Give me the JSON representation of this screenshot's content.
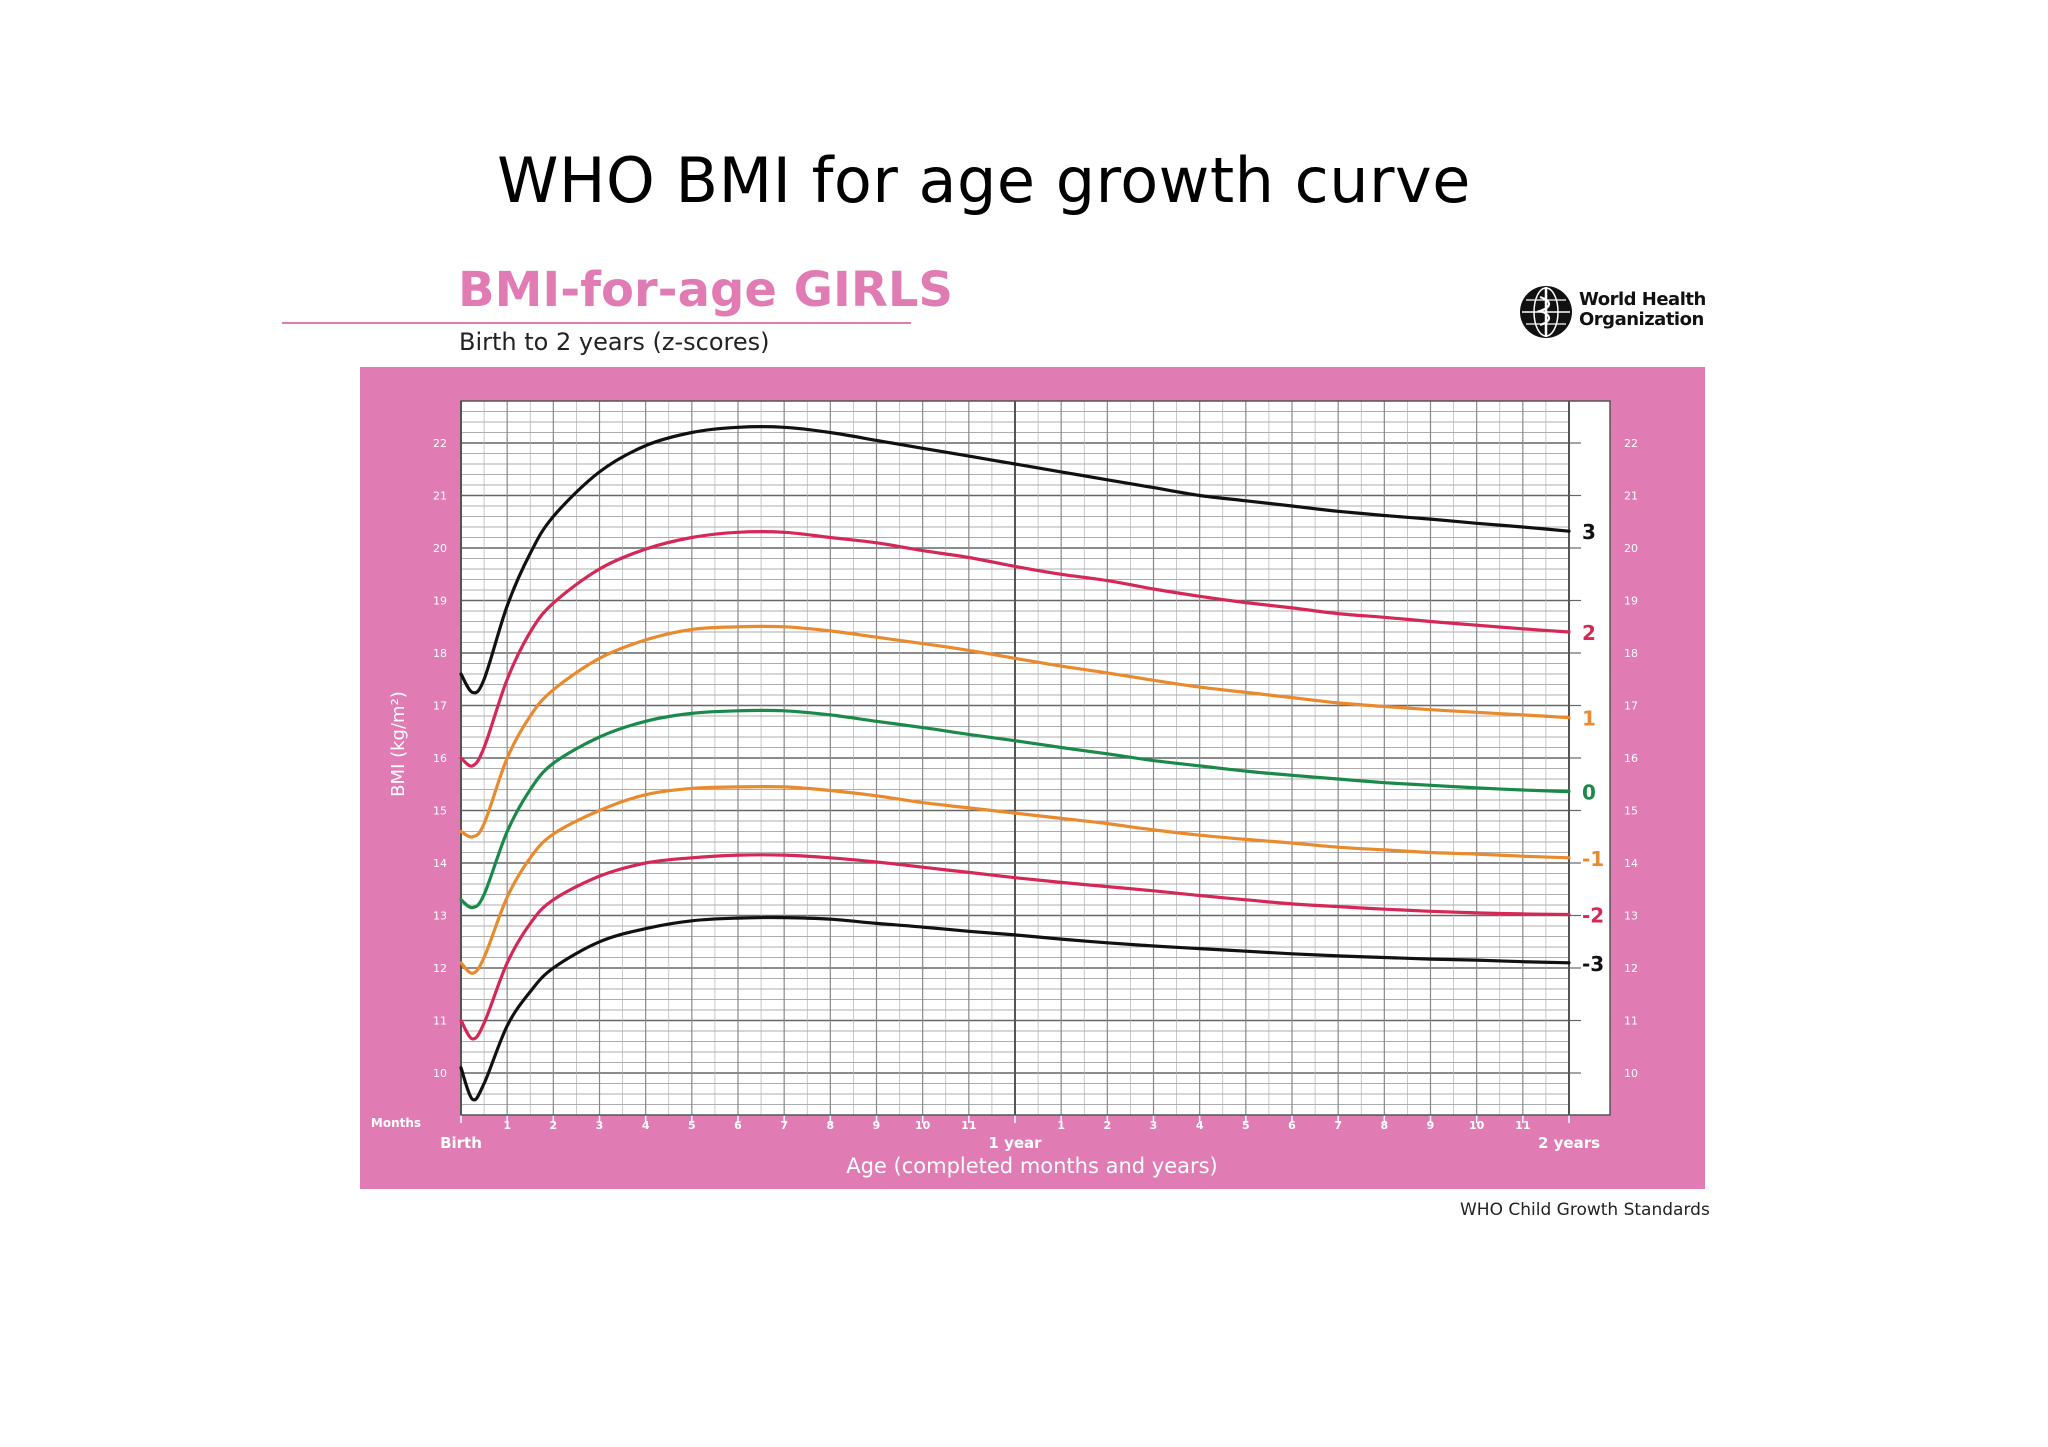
{
  "slide": {
    "title": "WHO BMI for age growth curve"
  },
  "header": {
    "title": "BMI-for-age GIRLS",
    "subtitle": "Birth to 2 years (z-scores)",
    "logo_text_line1": "World Health",
    "logo_text_line2": "Organization"
  },
  "footer": {
    "note": "WHO Child Growth Standards"
  },
  "colors": {
    "panel": "#e07cb3",
    "grid": "#909090",
    "black": "#111111",
    "red": "#d42857",
    "orange": "#e88a2e",
    "green": "#1a8a4a"
  },
  "chart_data": {
    "type": "line",
    "title": "BMI-for-age GIRLS",
    "subtitle": "Birth to 2 years (z-scores)",
    "xlabel": "Age (completed months and years)",
    "ylabel": "BMI (kg/m²)",
    "x_unit_label": "Months",
    "xlim": [
      0,
      24
    ],
    "ylim": [
      9.2,
      22.8
    ],
    "y_ticks": [
      10,
      11,
      12,
      13,
      14,
      15,
      16,
      17,
      18,
      19,
      20,
      21,
      22
    ],
    "x_ticks": [
      {
        "x": 0,
        "label": "Birth",
        "major": true
      },
      {
        "x": 1,
        "label": "1"
      },
      {
        "x": 2,
        "label": "2"
      },
      {
        "x": 3,
        "label": "3"
      },
      {
        "x": 4,
        "label": "4"
      },
      {
        "x": 5,
        "label": "5"
      },
      {
        "x": 6,
        "label": "6"
      },
      {
        "x": 7,
        "label": "7"
      },
      {
        "x": 8,
        "label": "8"
      },
      {
        "x": 9,
        "label": "9"
      },
      {
        "x": 10,
        "label": "10"
      },
      {
        "x": 11,
        "label": "11"
      },
      {
        "x": 12,
        "label": "1 year",
        "major": true
      },
      {
        "x": 13,
        "label": "1"
      },
      {
        "x": 14,
        "label": "2"
      },
      {
        "x": 15,
        "label": "3"
      },
      {
        "x": 16,
        "label": "4"
      },
      {
        "x": 17,
        "label": "5"
      },
      {
        "x": 18,
        "label": "6"
      },
      {
        "x": 19,
        "label": "7"
      },
      {
        "x": 20,
        "label": "8"
      },
      {
        "x": 21,
        "label": "9"
      },
      {
        "x": 22,
        "label": "10"
      },
      {
        "x": 23,
        "label": "11"
      },
      {
        "x": 24,
        "label": "2 years",
        "major": true
      }
    ],
    "x": [
      0,
      0.25,
      0.5,
      1,
      1.5,
      2,
      3,
      4,
      5,
      6,
      7,
      8,
      9,
      10,
      11,
      12,
      13,
      14,
      15,
      16,
      17,
      18,
      19,
      20,
      21,
      22,
      23,
      24
    ],
    "grid": true,
    "series": [
      {
        "name": "3",
        "color": "black",
        "values": [
          17.6,
          17.25,
          17.5,
          18.9,
          19.9,
          20.6,
          21.45,
          21.95,
          22.2,
          22.3,
          22.3,
          22.2,
          22.05,
          21.9,
          21.75,
          21.6,
          21.45,
          21.3,
          21.15,
          21.0,
          20.9,
          20.8,
          20.7,
          20.62,
          20.55,
          20.47,
          20.4,
          20.32
        ]
      },
      {
        "name": "2",
        "color": "red",
        "values": [
          16.0,
          15.85,
          16.2,
          17.5,
          18.4,
          18.95,
          19.6,
          19.98,
          20.2,
          20.3,
          20.3,
          20.2,
          20.1,
          19.95,
          19.82,
          19.65,
          19.5,
          19.38,
          19.22,
          19.08,
          18.96,
          18.86,
          18.75,
          18.68,
          18.6,
          18.53,
          18.46,
          18.4
        ]
      },
      {
        "name": "1",
        "color": "orange",
        "values": [
          14.6,
          14.5,
          14.75,
          16.0,
          16.8,
          17.3,
          17.9,
          18.25,
          18.45,
          18.5,
          18.5,
          18.42,
          18.3,
          18.18,
          18.05,
          17.9,
          17.75,
          17.62,
          17.48,
          17.35,
          17.25,
          17.15,
          17.05,
          16.98,
          16.92,
          16.87,
          16.82,
          16.77
        ]
      },
      {
        "name": "0",
        "color": "green",
        "values": [
          13.3,
          13.15,
          13.4,
          14.6,
          15.4,
          15.9,
          16.4,
          16.7,
          16.85,
          16.9,
          16.9,
          16.82,
          16.7,
          16.58,
          16.45,
          16.33,
          16.2,
          16.08,
          15.95,
          15.85,
          15.75,
          15.67,
          15.6,
          15.53,
          15.48,
          15.43,
          15.39,
          15.36
        ]
      },
      {
        "name": "-1",
        "color": "orange",
        "values": [
          12.1,
          11.9,
          12.2,
          13.35,
          14.1,
          14.55,
          15.0,
          15.3,
          15.42,
          15.45,
          15.45,
          15.38,
          15.28,
          15.15,
          15.05,
          14.95,
          14.85,
          14.75,
          14.63,
          14.53,
          14.45,
          14.38,
          14.3,
          14.25,
          14.2,
          14.17,
          14.13,
          14.1
        ]
      },
      {
        "name": "-2",
        "color": "red",
        "values": [
          11.0,
          10.65,
          10.95,
          12.1,
          12.85,
          13.3,
          13.75,
          14.0,
          14.1,
          14.15,
          14.15,
          14.1,
          14.02,
          13.92,
          13.82,
          13.72,
          13.63,
          13.55,
          13.47,
          13.38,
          13.3,
          13.22,
          13.17,
          13.12,
          13.08,
          13.05,
          13.03,
          13.02
        ]
      },
      {
        "name": "-3",
        "color": "black",
        "values": [
          10.1,
          9.5,
          9.8,
          10.9,
          11.55,
          12.0,
          12.5,
          12.75,
          12.9,
          12.95,
          12.96,
          12.93,
          12.85,
          12.78,
          12.7,
          12.63,
          12.55,
          12.48,
          12.42,
          12.37,
          12.32,
          12.27,
          12.23,
          12.2,
          12.17,
          12.15,
          12.12,
          12.1
        ]
      }
    ]
  }
}
